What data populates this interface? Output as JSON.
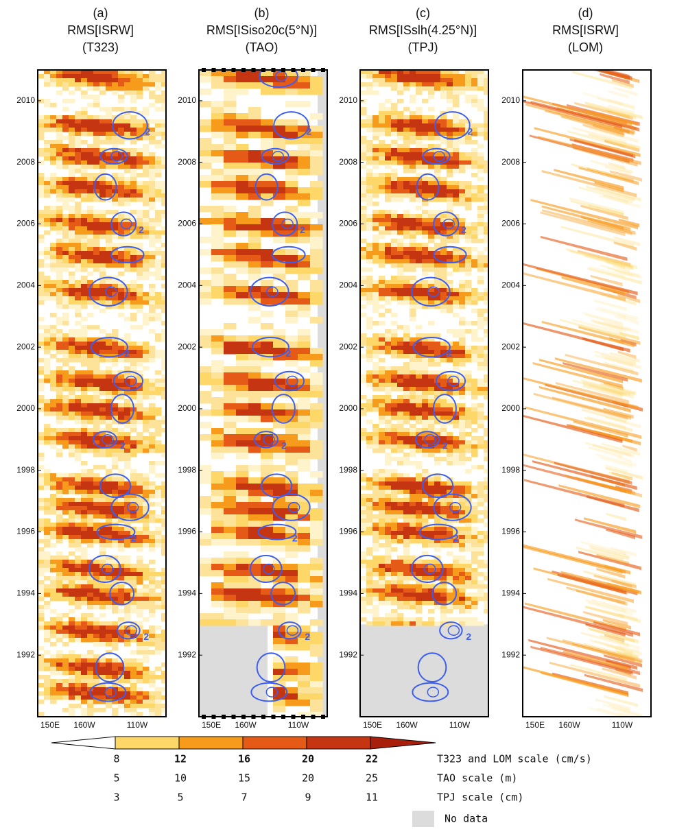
{
  "figure": {
    "panels": [
      {
        "label": "(a)",
        "title": "RMS[ISRW]",
        "subtitle": "(T323)",
        "ylim": [
          1990,
          2011
        ],
        "yticks": [
          1992,
          1994,
          1996,
          1998,
          2000,
          2002,
          2004,
          2006,
          2008,
          2010
        ],
        "xticks": [
          "150E",
          "160W",
          "110W"
        ],
        "contour_label": "2"
      },
      {
        "label": "(b)",
        "title": "RMS[ISiso20c(5°N)]",
        "subtitle": "(TAO)",
        "ylim": [
          1990,
          2011
        ],
        "yticks": [
          1992,
          1994,
          1996,
          1998,
          2000,
          2002,
          2004,
          2006,
          2008,
          2010
        ],
        "xticks": [
          "150E",
          "160W",
          "110W"
        ],
        "contour_label": "2"
      },
      {
        "label": "(c)",
        "title": "RMS[ISslh(4.25°N)]",
        "subtitle": "(TPJ)",
        "ylim": [
          1990,
          2011
        ],
        "yticks": [
          1992,
          1994,
          1996,
          1998,
          2000,
          2002,
          2004,
          2006,
          2008,
          2010
        ],
        "xticks": [
          "150E",
          "160W",
          "110W"
        ],
        "contour_label": "2"
      },
      {
        "label": "(d)",
        "title": "RMS[ISRW]",
        "subtitle": "(LOM)",
        "ylim": [
          1990,
          2011
        ],
        "yticks": [
          1992,
          1994,
          1996,
          1998,
          2000,
          2002,
          2004,
          2006,
          2008,
          2010
        ],
        "xticks": [
          "150E",
          "160W",
          "110W"
        ]
      }
    ],
    "colorbar": {
      "colors": [
        "#ffffff",
        "#fdd868",
        "#f79b1c",
        "#e55a16",
        "#c63512",
        "#a8200c"
      ],
      "scales": [
        {
          "values": [
            8,
            12,
            16,
            20,
            22
          ],
          "label": "T323 and LOM scale (cm/s)"
        },
        {
          "values": [
            5,
            10,
            15,
            20,
            25
          ],
          "label": "TAO scale (m)"
        },
        {
          "values": [
            3,
            5,
            7,
            9,
            11
          ],
          "label": "TPJ scale (cm)"
        }
      ]
    },
    "no_data": {
      "label": "No data",
      "color": "#dcdcdc"
    },
    "contour_color": "#3c5ef0"
  }
}
